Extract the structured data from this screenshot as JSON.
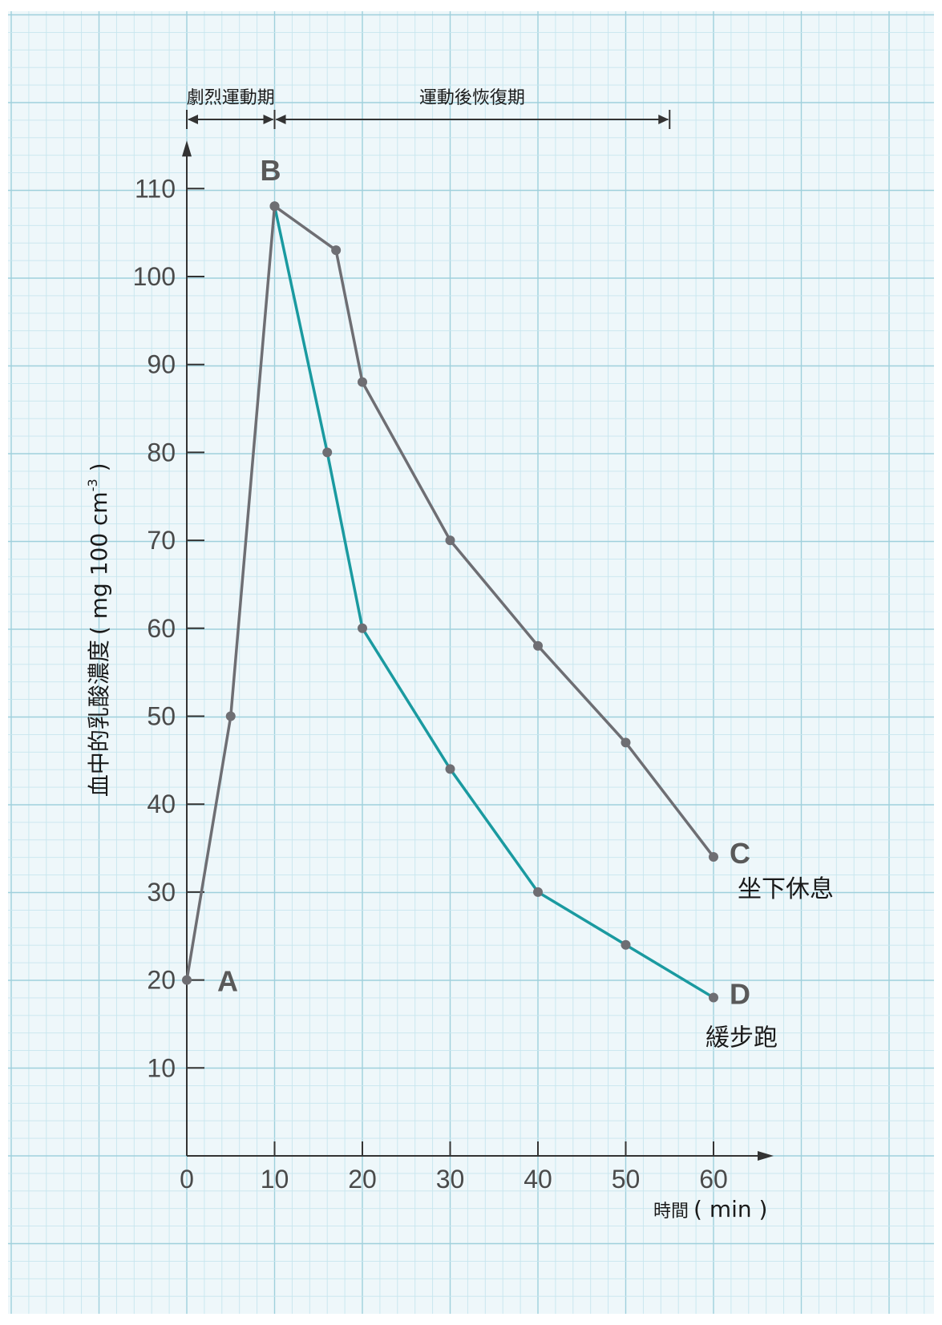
{
  "chart_data": {
    "type": "line",
    "xlabel": "時間",
    "xunit": "( min )",
    "ylabel_cn": "血中的乳酸濃度",
    "ylabel_unit_prefix": "( mg 100 cm",
    "ylabel_unit_exp": "-3",
    "ylabel_unit_suffix": " )",
    "xlim": [
      0,
      60
    ],
    "ylim": [
      0,
      110
    ],
    "x_ticks": [
      0,
      10,
      20,
      30,
      40,
      50,
      60
    ],
    "y_ticks": [
      10,
      20,
      30,
      40,
      50,
      60,
      70,
      80,
      90,
      100,
      110
    ],
    "grid": true,
    "phases": [
      {
        "label": "劇烈運動期",
        "x_start": 0,
        "x_end": 10
      },
      {
        "label": "運動後恢復期",
        "x_start": 10,
        "x_end": 55
      }
    ],
    "series": [
      {
        "name": "坐下休息",
        "end_letter": "C",
        "color": "#6e6e73",
        "points": [
          [
            0,
            20
          ],
          [
            5,
            50
          ],
          [
            10,
            108
          ],
          [
            17,
            103
          ],
          [
            20,
            88
          ],
          [
            30,
            70
          ],
          [
            40,
            58
          ],
          [
            50,
            47
          ],
          [
            60,
            34
          ]
        ]
      },
      {
        "name": "緩步跑",
        "end_letter": "D",
        "color": "#1a9aa0",
        "points": [
          [
            10,
            108
          ],
          [
            16,
            80
          ],
          [
            20,
            60
          ],
          [
            30,
            44
          ],
          [
            40,
            30
          ],
          [
            50,
            24
          ],
          [
            60,
            18
          ]
        ]
      }
    ],
    "point_labels": [
      {
        "text": "A",
        "x": 0,
        "y": 20
      },
      {
        "text": "B",
        "x": 10,
        "y": 108
      }
    ]
  }
}
